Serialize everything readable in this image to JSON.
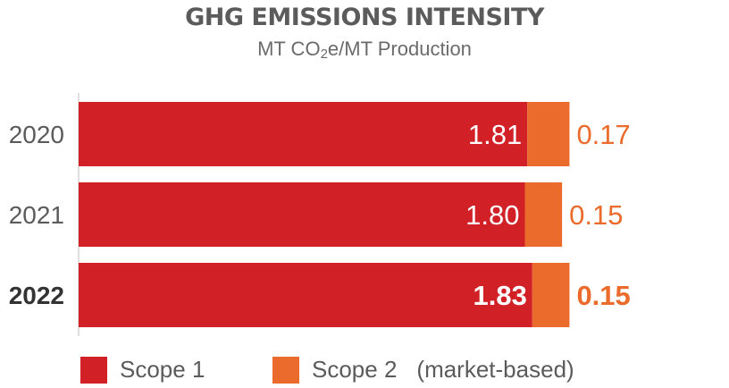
{
  "chart_data": {
    "type": "bar",
    "orientation": "horizontal",
    "stacked": true,
    "title": "GHG EMISSIONS INTENSITY",
    "subtitle_pre": "MT CO",
    "subtitle_sub": "2",
    "subtitle_post": "e/MT Production",
    "categories": [
      "2020",
      "2021",
      "2022"
    ],
    "series": [
      {
        "name": "Scope 1",
        "values": [
          1.81,
          1.8,
          1.83
        ],
        "labels": [
          "1.81",
          "1.80",
          "1.83"
        ],
        "color": "#d12127"
      },
      {
        "name": "Scope 2",
        "values": [
          0.17,
          0.15,
          0.15
        ],
        "labels": [
          "0.17",
          "0.15",
          "0.15"
        ],
        "color": "#ea6b2b"
      }
    ],
    "legend_extra": "(market-based)",
    "legend_position": "bottom",
    "grid": false,
    "xlim": [
      0,
      2.0
    ],
    "colors": {
      "category_label": "#5b5b5b",
      "emphasis_label": "#333333",
      "inside_label": "#ffffff"
    }
  }
}
